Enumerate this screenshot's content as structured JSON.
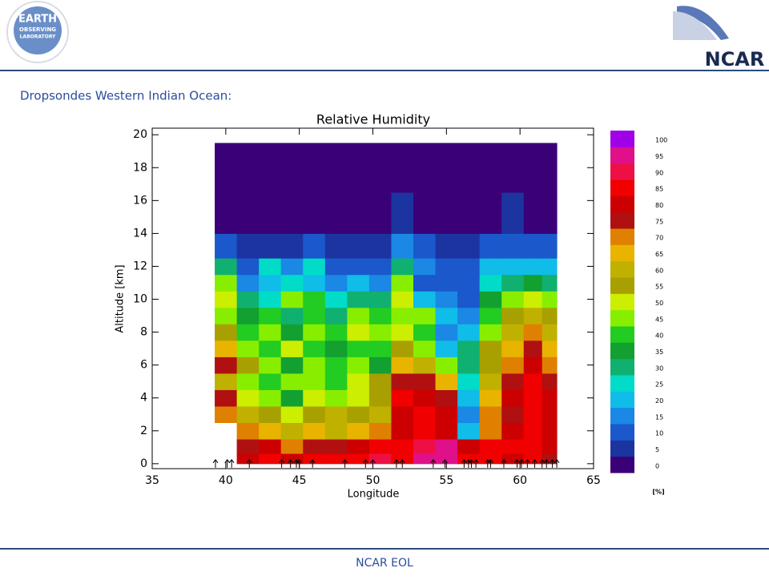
{
  "header": {
    "logo_line1": "EARTH",
    "logo_line2": "OBSERVING",
    "logo_line3": "LABORATORY",
    "org": "NCAR"
  },
  "subtitle": "Dropsondes Western Indian Ocean:",
  "footer": "NCAR EOL",
  "chart_data": {
    "type": "contour",
    "title": "Relative Humidity",
    "x_label": "Longitude",
    "y_label": "Altitude [km]",
    "xlim": [
      35,
      65
    ],
    "xticks": [
      35,
      40,
      45,
      50,
      55,
      60,
      65
    ],
    "ylim": [
      -0.3,
      20.4
    ],
    "yticks": [
      0,
      2,
      4,
      6,
      8,
      10,
      12,
      14,
      16,
      18,
      20
    ],
    "x": [
      40,
      41.5,
      43,
      44.5,
      46,
      47.5,
      49,
      50.5,
      52,
      53.5,
      55,
      56.5,
      58,
      59.5,
      61,
      62
    ],
    "y": [
      0.25,
      1,
      2,
      3,
      4,
      5,
      6,
      7,
      8,
      9,
      10,
      11,
      12,
      13,
      15,
      18
    ],
    "z": [
      [
        null,
        80,
        85,
        80,
        85,
        85,
        85,
        90,
        85,
        95,
        95,
        85,
        85,
        80,
        85,
        75
      ],
      [
        null,
        75,
        80,
        70,
        75,
        75,
        80,
        85,
        85,
        90,
        95,
        80,
        85,
        85,
        85,
        80
      ],
      [
        null,
        70,
        65,
        60,
        65,
        60,
        65,
        70,
        80,
        85,
        80,
        20,
        70,
        80,
        85,
        80
      ],
      [
        70,
        60,
        55,
        50,
        55,
        60,
        55,
        60,
        80,
        85,
        80,
        15,
        70,
        75,
        85,
        80
      ],
      [
        75,
        50,
        45,
        35,
        50,
        45,
        50,
        55,
        85,
        80,
        75,
        20,
        65,
        80,
        85,
        80
      ],
      [
        60,
        45,
        40,
        45,
        45,
        40,
        50,
        55,
        75,
        75,
        65,
        25,
        60,
        75,
        85,
        75
      ],
      [
        75,
        55,
        45,
        35,
        45,
        40,
        45,
        35,
        65,
        60,
        45,
        30,
        55,
        70,
        80,
        70
      ],
      [
        65,
        45,
        40,
        50,
        40,
        35,
        40,
        40,
        55,
        45,
        20,
        30,
        55,
        65,
        75,
        65
      ],
      [
        55,
        40,
        45,
        35,
        45,
        40,
        50,
        45,
        50,
        40,
        15,
        20,
        45,
        60,
        70,
        60
      ],
      [
        45,
        35,
        40,
        30,
        40,
        30,
        45,
        40,
        45,
        45,
        20,
        15,
        40,
        55,
        60,
        55
      ],
      [
        50,
        30,
        25,
        45,
        40,
        25,
        30,
        30,
        50,
        20,
        15,
        10,
        35,
        45,
        50,
        45
      ],
      [
        45,
        15,
        20,
        25,
        20,
        15,
        20,
        15,
        45,
        10,
        10,
        10,
        25,
        30,
        35,
        30
      ],
      [
        30,
        10,
        25,
        15,
        25,
        10,
        10,
        10,
        30,
        15,
        10,
        10,
        20,
        20,
        20,
        20
      ],
      [
        10,
        5,
        5,
        5,
        10,
        5,
        5,
        5,
        15,
        10,
        5,
        5,
        10,
        10,
        10,
        10
      ],
      [
        0,
        0,
        0,
        0,
        0,
        0,
        0,
        0,
        5,
        0,
        0,
        0,
        0,
        5,
        0,
        0
      ],
      [
        0,
        0,
        0,
        0,
        0,
        0,
        0,
        0,
        0,
        0,
        0,
        0,
        0,
        0,
        0,
        0
      ]
    ],
    "levels": [
      0,
      5,
      10,
      15,
      20,
      25,
      30,
      35,
      40,
      45,
      50,
      55,
      60,
      65,
      70,
      75,
      80,
      85,
      90,
      95,
      100
    ],
    "colors": [
      "#3a0078",
      "#1c34a0",
      "#1a58cc",
      "#1a88e4",
      "#10bce8",
      "#00dcc8",
      "#10b070",
      "#12a030",
      "#22cc22",
      "#88ee00",
      "#ccee00",
      "#a8a000",
      "#c0b000",
      "#e8b400",
      "#e08000",
      "#b01010",
      "#cc0000",
      "#f00000",
      "#ee1044",
      "#e0108a",
      "#a000e8"
    ],
    "colorbar_unit": "[%]",
    "sonde_longitudes": [
      39.3,
      40.1,
      40.4,
      41.6,
      43.8,
      44.4,
      44.8,
      45.0,
      45.9,
      48.1,
      49.5,
      50.0,
      51.6,
      52.0,
      54.1,
      54.9,
      56.2,
      56.5,
      56.7,
      57.0,
      57.8,
      58.0,
      58.9,
      59.8,
      60.1,
      60.5,
      61.0,
      61.5,
      61.8,
      62.2,
      62.5
    ]
  }
}
